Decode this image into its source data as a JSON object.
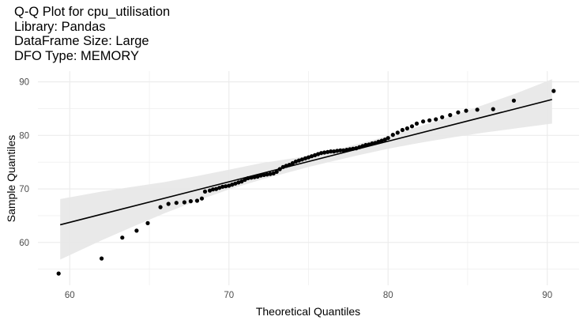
{
  "chart_data": {
    "type": "scatter",
    "title_lines": [
      "Q-Q Plot for cpu_utilisation",
      "Library: Pandas",
      "DataFrame Size: Large",
      "DFO Type: MEMORY"
    ],
    "xlabel": "Theoretical Quantiles",
    "ylabel": "Sample Quantiles",
    "xlim": [
      58,
      92
    ],
    "ylim": [
      52,
      92
    ],
    "x_ticks": [
      60,
      70,
      80,
      90
    ],
    "y_ticks": [
      60,
      70,
      80,
      90
    ],
    "grid": true,
    "colors": {
      "points": "#000000",
      "line": "#000000",
      "band": "#e8e8e8",
      "grid": "#ebebeb",
      "tick_text": "#4d4d4d"
    },
    "reference_line": {
      "x": [
        59.4,
        90.3
      ],
      "y": [
        63.3,
        86.7
      ]
    },
    "confidence_band": {
      "x": [
        59.4,
        62,
        64,
        66,
        68,
        70,
        72,
        74,
        75,
        76,
        78,
        80,
        82,
        84,
        86,
        88,
        90.3
      ],
      "lower": [
        56.8,
        60.4,
        63.0,
        65.5,
        67.8,
        69.9,
        71.7,
        73.3,
        74.1,
        74.8,
        76.2,
        77.5,
        78.6,
        79.6,
        80.5,
        81.3,
        82.2
      ],
      "upper": [
        68.1,
        69.5,
        70.4,
        71.3,
        72.4,
        73.6,
        74.8,
        75.7,
        76.2,
        76.8,
        78.3,
        79.9,
        81.7,
        83.6,
        85.7,
        87.8,
        90.5
      ]
    },
    "points": {
      "x": [
        59.3,
        62.0,
        63.3,
        64.2,
        64.9,
        65.7,
        66.2,
        66.7,
        67.2,
        67.6,
        68.0,
        68.3,
        68.5,
        68.8,
        69.0,
        69.2,
        69.4,
        69.6,
        69.8,
        70.0,
        70.2,
        70.4,
        70.6,
        70.8,
        71.0,
        71.2,
        71.4,
        71.6,
        71.8,
        72.0,
        72.2,
        72.4,
        72.6,
        72.8,
        73.0,
        73.2,
        73.4,
        73.6,
        73.8,
        74.0,
        74.2,
        74.4,
        74.6,
        74.8,
        75.0,
        75.2,
        75.4,
        75.6,
        75.8,
        76.0,
        76.2,
        76.4,
        76.6,
        76.8,
        77.0,
        77.2,
        77.4,
        77.6,
        77.8,
        78.0,
        78.2,
        78.4,
        78.6,
        78.8,
        79.0,
        79.2,
        79.4,
        79.6,
        79.8,
        80.0,
        80.3,
        80.6,
        80.9,
        81.2,
        81.5,
        81.8,
        82.2,
        82.6,
        83.0,
        83.4,
        83.9,
        84.4,
        84.9,
        85.6,
        86.6,
        87.9,
        90.4
      ],
      "y": [
        54.2,
        57.0,
        60.9,
        62.2,
        63.6,
        66.6,
        67.2,
        67.4,
        67.5,
        67.7,
        67.8,
        68.2,
        69.5,
        69.7,
        69.9,
        70.0,
        70.2,
        70.4,
        70.5,
        70.6,
        70.8,
        71.0,
        71.2,
        71.4,
        71.7,
        72.0,
        72.1,
        72.2,
        72.3,
        72.5,
        72.6,
        72.7,
        72.8,
        72.9,
        73.2,
        73.7,
        74.1,
        74.3,
        74.5,
        74.8,
        75.1,
        75.3,
        75.5,
        75.7,
        75.9,
        76.1,
        76.3,
        76.5,
        76.7,
        76.8,
        76.9,
        77.0,
        77.0,
        77.1,
        77.2,
        77.2,
        77.3,
        77.4,
        77.5,
        77.6,
        77.8,
        78.0,
        78.2,
        78.3,
        78.5,
        78.6,
        78.8,
        79.0,
        79.2,
        79.5,
        80.1,
        80.5,
        81.0,
        81.3,
        81.7,
        82.2,
        82.6,
        82.8,
        83.0,
        83.4,
        83.8,
        84.3,
        84.6,
        84.8,
        84.9,
        86.5,
        88.3
      ]
    }
  }
}
